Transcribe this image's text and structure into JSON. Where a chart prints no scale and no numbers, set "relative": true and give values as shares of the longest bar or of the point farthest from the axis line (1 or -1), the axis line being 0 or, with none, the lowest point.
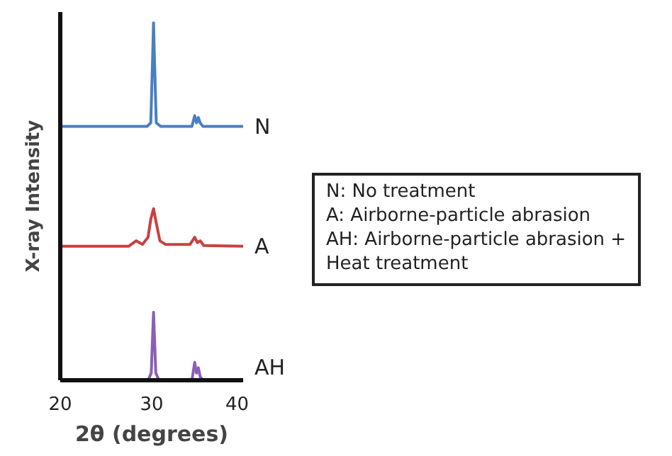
{
  "chart_data": {
    "type": "line",
    "relative": true,
    "xlabel": "2θ (degrees)",
    "ylabel": "X-ray Intensity",
    "xlim": [
      20,
      40
    ],
    "xticks": [
      20,
      30,
      40
    ],
    "grid": false,
    "marker": "none",
    "line_style": "solid",
    "annotations": [
      "N: No treatment\nA: Airborne-particle abrasion\nAH: Airborne-particle abrasion +\nHeat treatment"
    ],
    "series": [
      {
        "name": "N",
        "color": "#4a7fc1",
        "x": [
          20,
          29.5,
          29.9,
          30.1,
          30.2,
          30.3,
          30.5,
          31.0,
          34.4,
          34.7,
          34.9,
          35.1,
          35.3,
          35.6,
          40
        ],
        "values": [
          0.71,
          0.71,
          0.72,
          0.9,
          1.0,
          0.9,
          0.72,
          0.71,
          0.71,
          0.74,
          0.72,
          0.735,
          0.72,
          0.71,
          0.71
        ]
      },
      {
        "name": "A",
        "color": "#c94040",
        "x": [
          20,
          27.5,
          28.3,
          29.0,
          29.6,
          29.9,
          30.2,
          30.5,
          30.9,
          31.5,
          34.2,
          34.7,
          35.0,
          35.3,
          35.7,
          40
        ],
        "values": [
          0.375,
          0.375,
          0.39,
          0.38,
          0.4,
          0.45,
          0.48,
          0.44,
          0.39,
          0.38,
          0.38,
          0.4,
          0.385,
          0.39,
          0.377,
          0.375
        ]
      },
      {
        "name": "AH",
        "color": "#8a5fb5",
        "x": [
          20,
          29.6,
          29.95,
          30.2,
          30.45,
          30.8,
          34.4,
          34.7,
          34.9,
          35.1,
          35.3,
          35.6,
          40
        ],
        "values": [
          0.0,
          0.0,
          0.02,
          0.19,
          0.02,
          0.0,
          0.0,
          0.05,
          0.02,
          0.035,
          0.01,
          0.0,
          0.0
        ]
      }
    ]
  }
}
